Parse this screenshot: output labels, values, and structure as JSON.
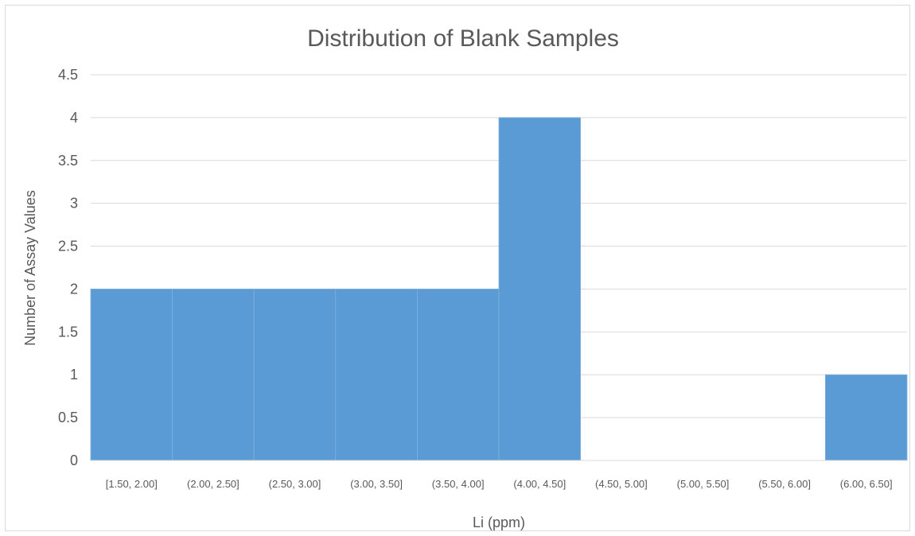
{
  "chart_data": {
    "type": "bar",
    "title": "Distribution of Blank Samples",
    "xlabel": "Li (ppm)",
    "ylabel": "Number of Assay Values",
    "categories": [
      "[1.50, 2.00]",
      "(2.00, 2.50]",
      "(2.50, 3.00]",
      "(3.00, 3.50]",
      "(3.50, 4.00]",
      "(4.00, 4.50]",
      "(4.50, 5.00]",
      "(5.00, 5.50]",
      "(5.50, 6.00]",
      "(6.00, 6.50]"
    ],
    "values": [
      2,
      2,
      2,
      2,
      2,
      4,
      0,
      0,
      0,
      1
    ],
    "ylim": [
      0,
      4.5
    ],
    "yticks": [
      "0",
      "0.5",
      "1",
      "1.5",
      "2",
      "2.5",
      "3",
      "3.5",
      "4",
      "4.5"
    ],
    "grid": true,
    "bar_color": "#5b9bd5",
    "grid_color": "#d9d9d9",
    "text_color": "#595959"
  }
}
